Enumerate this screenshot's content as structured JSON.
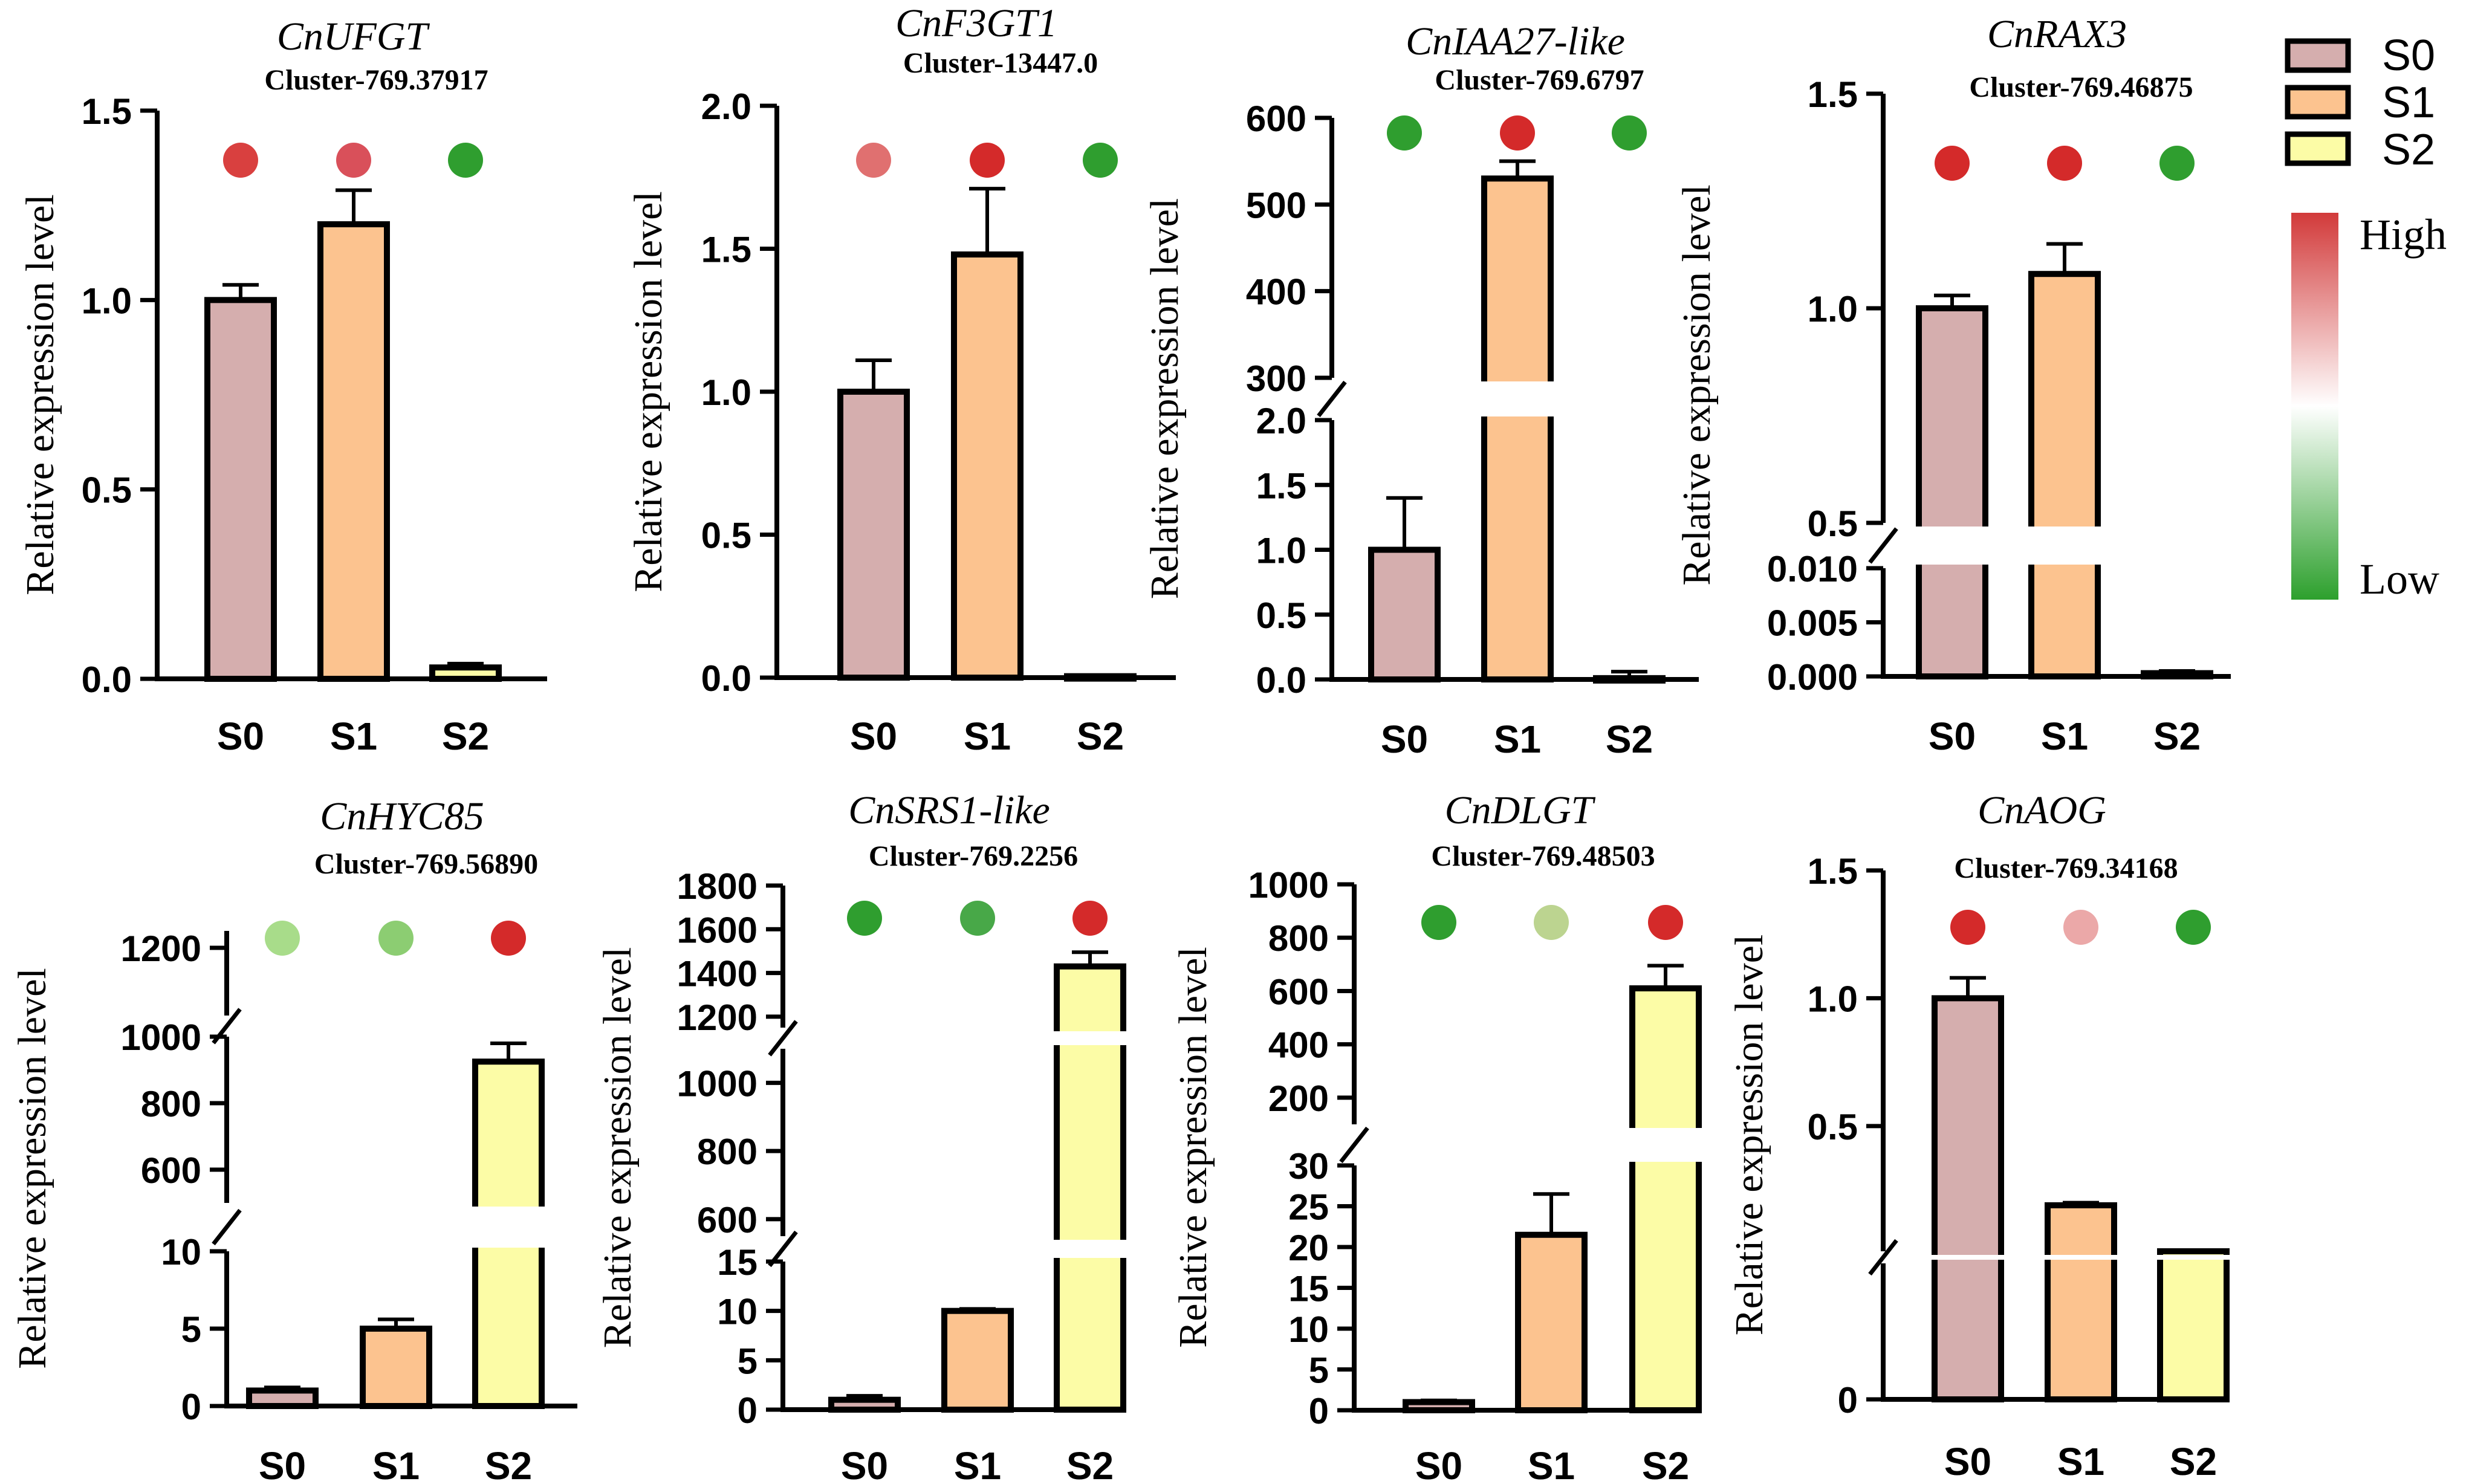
{
  "legend": {
    "items": [
      {
        "label": "S0",
        "color": "#d5aeae"
      },
      {
        "label": "S1",
        "color": "#fcc38f"
      },
      {
        "label": "S2",
        "color": "#fcfca6"
      }
    ],
    "scale_high": "High",
    "scale_low": "Low",
    "scale_colors": [
      "#d23a3a",
      "#ffffff",
      "#2da02d"
    ]
  },
  "chart_data": [
    {
      "type": "bar",
      "title": "CnUFGT",
      "subtitle": "Cluster-769.37917",
      "ylabel": "Relative expression level",
      "categories": [
        "S0",
        "S1",
        "S2"
      ],
      "values": [
        1.0,
        1.2,
        0.03
      ],
      "errors": [
        0.04,
        0.09,
        0.01
      ],
      "dot_colors": [
        "#d9403f",
        "#d9505a",
        "#2f9e2f"
      ],
      "segments": [
        {
          "min": 0,
          "max": 1.5,
          "ticks": [
            0,
            0.5,
            1.0,
            1.5
          ],
          "tick_labels": [
            "0.0",
            "0.5",
            "1.0",
            "1.5"
          ]
        }
      ]
    },
    {
      "type": "bar",
      "title": "CnF3GT1",
      "subtitle": "Cluster-13447.0",
      "ylabel": "Relative expression level",
      "categories": [
        "S0",
        "S1",
        "S2"
      ],
      "values": [
        1.0,
        1.48,
        0.005
      ],
      "errors": [
        0.11,
        0.23,
        0.003
      ],
      "dot_colors": [
        "#e07070",
        "#d42a2a",
        "#2f9e2f"
      ],
      "segments": [
        {
          "min": 0,
          "max": 2.0,
          "ticks": [
            0,
            0.5,
            1.0,
            1.5,
            2.0
          ],
          "tick_labels": [
            "0.0",
            "0.5",
            "1.0",
            "1.5",
            "2.0"
          ]
        }
      ]
    },
    {
      "type": "bar",
      "title": "CnIAA27-like",
      "subtitle": "Cluster-769.6797",
      "ylabel": "Relative expression level",
      "categories": [
        "S0",
        "S1",
        "S2"
      ],
      "values": [
        1.0,
        530,
        0.01
      ],
      "errors": [
        0.4,
        20,
        0.05
      ],
      "dot_colors": [
        "#2f9e2f",
        "#d42a2a",
        "#2f9e2f"
      ],
      "segments": [
        {
          "min": 0,
          "max": 2.0,
          "ticks": [
            0,
            0.5,
            1.0,
            1.5,
            2.0
          ],
          "tick_labels": [
            "0.0",
            "0.5",
            "1.0",
            "1.5",
            "2.0"
          ]
        },
        {
          "min": 300,
          "max": 600,
          "ticks": [
            300,
            400,
            500,
            600
          ],
          "tick_labels": [
            "300",
            "400",
            "500",
            "600"
          ]
        }
      ]
    },
    {
      "type": "bar",
      "title": "CnRAX3",
      "subtitle": "Cluster-769.46875",
      "ylabel": "Relative expression level",
      "categories": [
        "S0",
        "S1",
        "S2"
      ],
      "values": [
        1.0,
        1.08,
        0.0003
      ],
      "errors": [
        0.03,
        0.07,
        0.0002
      ],
      "dot_colors": [
        "#d42a2a",
        "#d42a2a",
        "#2f9e2f"
      ],
      "segments": [
        {
          "min": 0,
          "max": 0.01,
          "ticks": [
            0,
            0.005,
            0.01
          ],
          "tick_labels": [
            "0.000",
            "0.005",
            "0.010"
          ]
        },
        {
          "min": 0.5,
          "max": 1.5,
          "ticks": [
            0.5,
            1.0,
            1.5
          ],
          "tick_labels": [
            "0.5",
            "1.0",
            "1.5"
          ]
        }
      ]
    },
    {
      "type": "bar",
      "title": "CnHYC85",
      "subtitle": "Cluster-769.56890",
      "ylabel": "Relative expression level",
      "categories": [
        "S0",
        "S1",
        "S2"
      ],
      "values": [
        1.0,
        5.0,
        925
      ],
      "errors": [
        0.2,
        0.6,
        55
      ],
      "dot_colors": [
        "#a8dc8a",
        "#8ccd72",
        "#d42a2a"
      ],
      "segments": [
        {
          "min": 0,
          "max": 10,
          "ticks": [
            0,
            5,
            10
          ],
          "tick_labels": [
            "0",
            "5",
            "10"
          ]
        },
        {
          "min": 500,
          "max": 1000,
          "ticks": [
            600,
            800,
            1000
          ],
          "tick_labels": [
            "600",
            "800",
            "1000"
          ]
        },
        {
          "min": 1000,
          "max": 1250,
          "ticks": [
            1000,
            1200
          ],
          "tick_labels": [
            "1000",
            "1200"
          ]
        }
      ]
    },
    {
      "type": "bar",
      "title": "CnSRS1-like",
      "subtitle": "Cluster-769.2256",
      "ylabel": "Relative expression level",
      "categories": [
        "S0",
        "S1",
        "S2"
      ],
      "values": [
        1.0,
        10.0,
        1430
      ],
      "errors": [
        0.4,
        0.2,
        65
      ],
      "dot_colors": [
        "#2f9e2f",
        "#48a848",
        "#d42a2a"
      ],
      "segments": [
        {
          "min": 0,
          "max": 15,
          "ticks": [
            0,
            5,
            10,
            15
          ],
          "tick_labels": [
            "0",
            "5",
            "10",
            "15"
          ]
        },
        {
          "min": 550,
          "max": 1100,
          "ticks": [
            600,
            800,
            1000
          ],
          "tick_labels": [
            "600",
            "800",
            "1000"
          ]
        },
        {
          "min": 1150,
          "max": 1800,
          "ticks": [
            1200,
            1400,
            1600,
            1800
          ],
          "tick_labels": [
            "1200",
            "1400",
            "1600",
            "1800"
          ]
        }
      ]
    },
    {
      "type": "bar",
      "title": "CnDLGT",
      "subtitle": "Cluster-769.48503",
      "ylabel": "Relative expression level",
      "categories": [
        "S0",
        "S1",
        "S2"
      ],
      "values": [
        1.0,
        21.5,
        610
      ],
      "errors": [
        0.2,
        5.0,
        85
      ],
      "dot_colors": [
        "#2f9e2f",
        "#bcd490",
        "#d42a2a"
      ],
      "segments": [
        {
          "min": 0,
          "max": 30,
          "ticks": [
            0,
            5,
            10,
            15,
            20,
            25,
            30
          ],
          "tick_labels": [
            "0",
            "5",
            "10",
            "15",
            "20",
            "25",
            "30"
          ]
        },
        {
          "min": 100,
          "max": 1000,
          "ticks": [
            200,
            400,
            600,
            800,
            1000
          ],
          "tick_labels": [
            "200",
            "400",
            "600",
            "800",
            "1000"
          ]
        }
      ]
    },
    {
      "type": "bar",
      "title": "CnAOG",
      "subtitle": "Cluster-769.34168",
      "ylabel": "Relative expression level",
      "categories": [
        "S0",
        "S1",
        "S2"
      ],
      "values": [
        1.0,
        0.19,
        0.01
      ],
      "errors": [
        0.08,
        0.01,
        0.002
      ],
      "dot_colors": [
        "#d42a2a",
        "#eba8a8",
        "#2f9e2f"
      ],
      "segments": [
        {
          "min": 0,
          "max": 0.002,
          "ticks": [
            0
          ],
          "tick_labels": [
            "0"
          ]
        },
        {
          "min": 0.01,
          "max": 1.5,
          "ticks": [
            0.5,
            1.0,
            1.5
          ],
          "tick_labels": [
            "0.5",
            "1.0",
            "1.5"
          ]
        }
      ]
    }
  ]
}
